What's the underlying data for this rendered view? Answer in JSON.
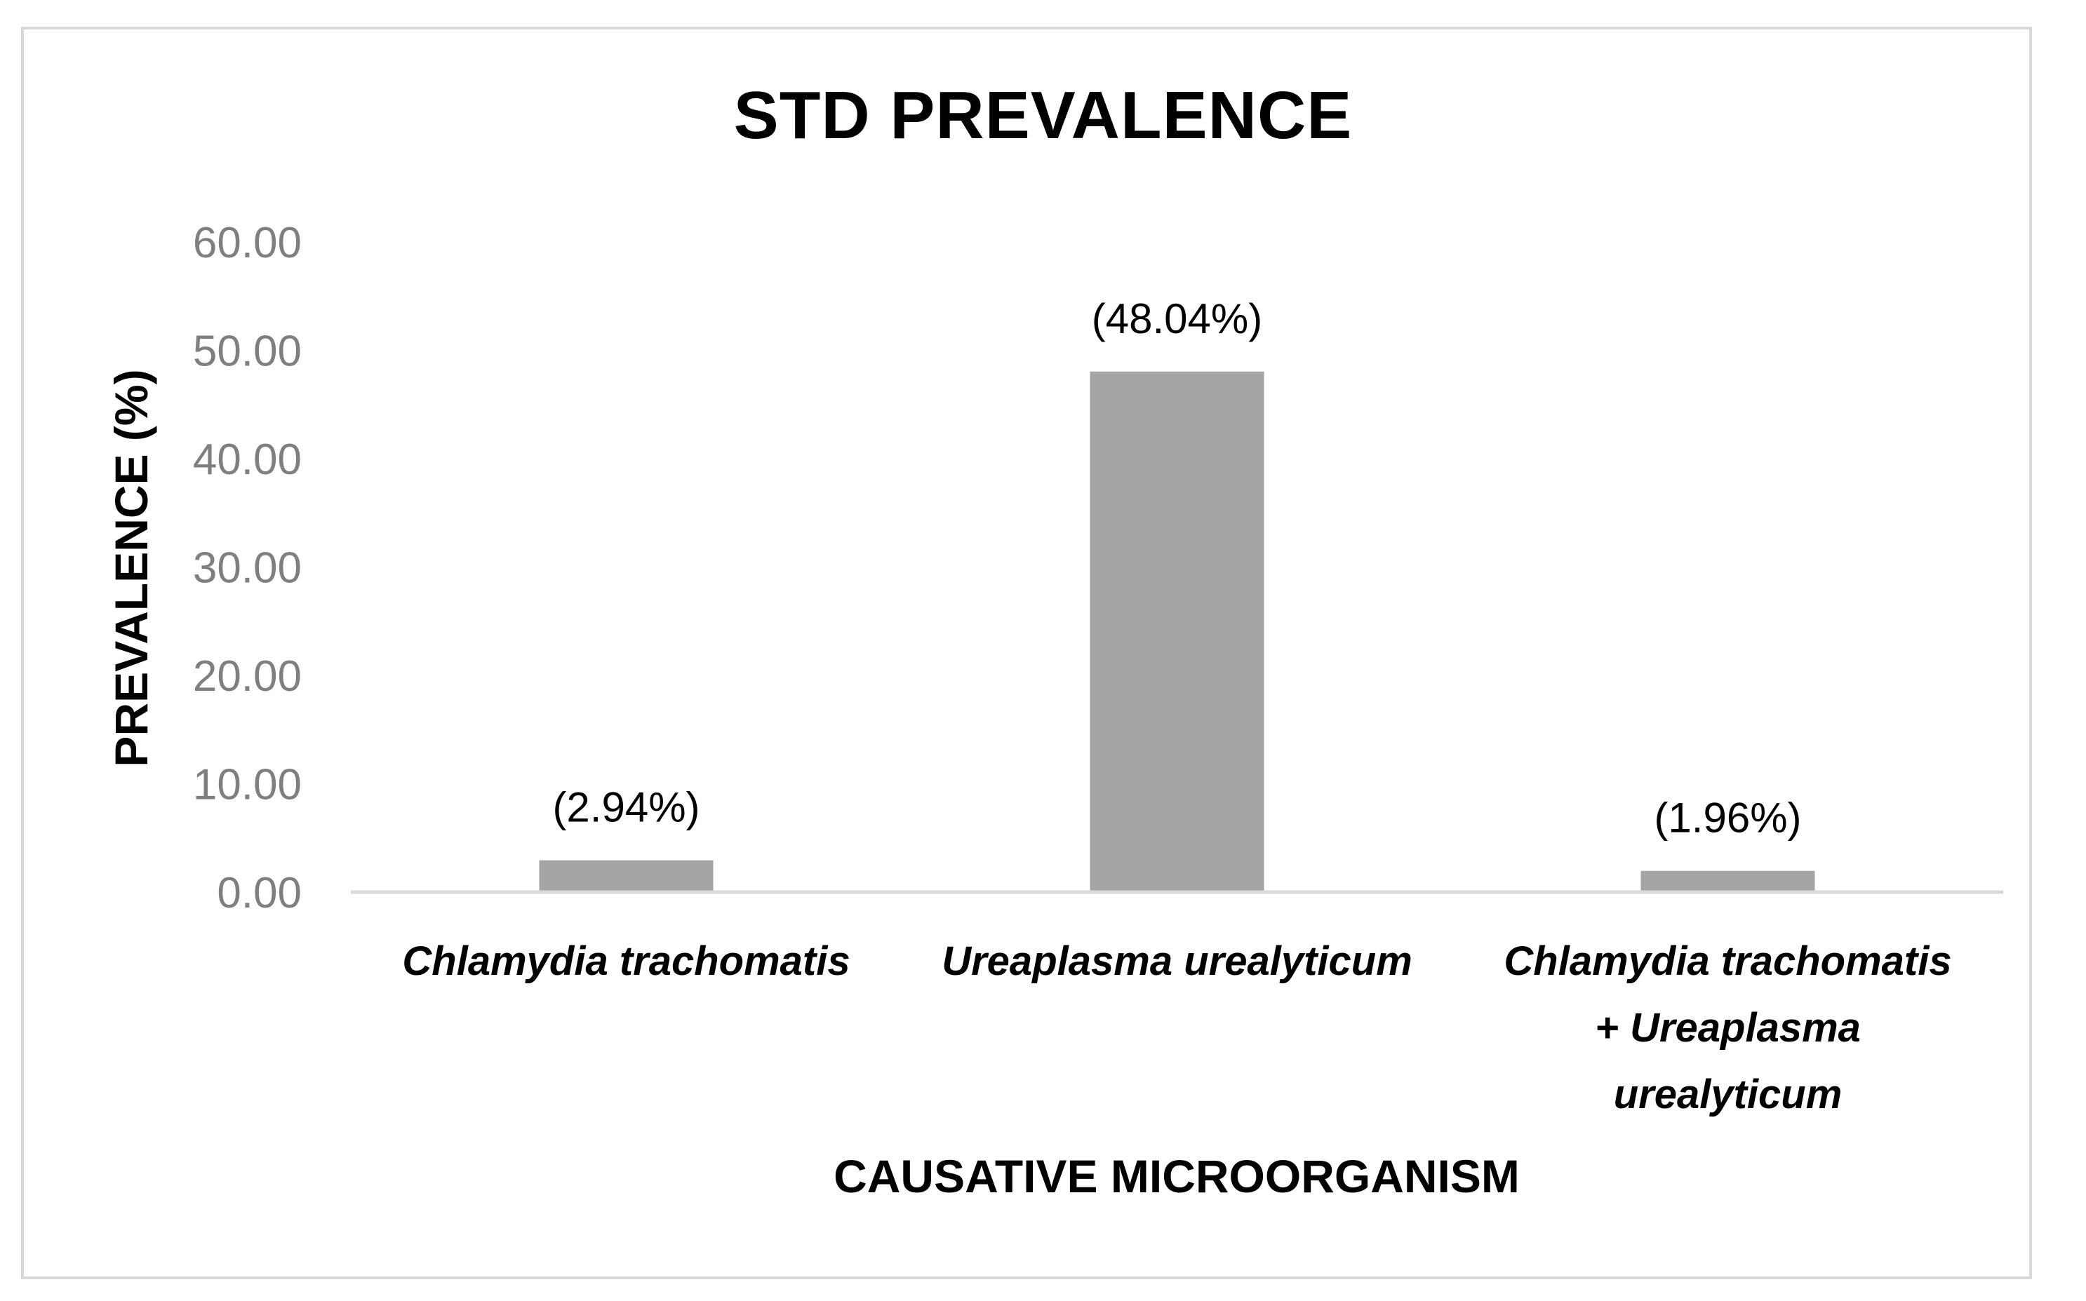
{
  "chart_data": {
    "type": "bar",
    "title": "STD PREVALENCE",
    "xlabel": "CAUSATIVE MICROORGANISM",
    "ylabel": "PREVALENCE (%)",
    "categories": [
      [
        "Chlamydia trachomatis"
      ],
      [
        "Ureaplasma urealyticum"
      ],
      [
        "Chlamydia trachomatis",
        "+ Ureaplasma",
        "urealyticum"
      ]
    ],
    "values": [
      2.94,
      48.04,
      1.96
    ],
    "data_labels": [
      "(2.94%)",
      "(48.04%)",
      "(1.96%)"
    ],
    "ylim": [
      0,
      60
    ],
    "yticks": [
      "0.00",
      "10.00",
      "20.00",
      "30.00",
      "40.00",
      "50.00",
      "60.00"
    ],
    "grid": false,
    "legend": "none",
    "bar_color": "#a5a5a5",
    "axis_color": "#d9d9d9"
  }
}
